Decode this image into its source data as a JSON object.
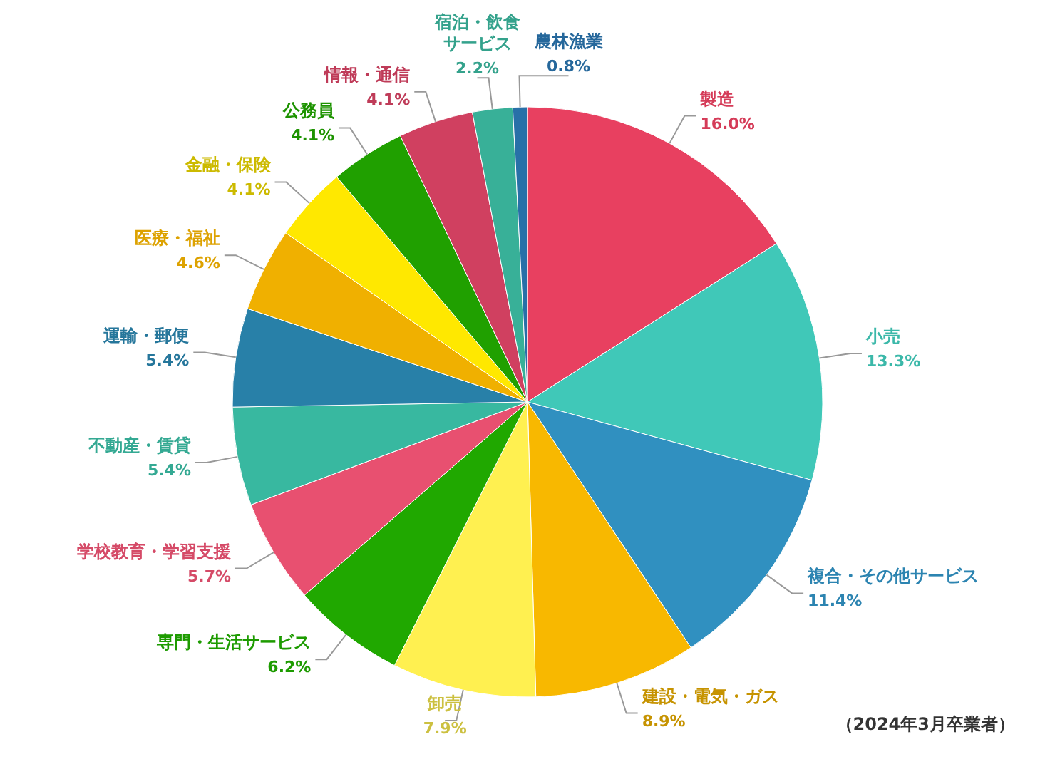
{
  "chart_data": {
    "type": "pie",
    "categories": [
      "製造",
      "小売",
      "複合・その他サービス",
      "建設・電気・ガス",
      "卸売",
      "専門・生活サービス",
      "学校教育・学習支援",
      "不動産・賃貸",
      "運輸・郵便",
      "医療・福祉",
      "金融・保険",
      "公務員",
      "情報・通信",
      "宿泊・飲食サービス",
      "農林漁業"
    ],
    "values": [
      16.0,
      13.3,
      11.4,
      8.9,
      7.9,
      6.2,
      5.7,
      5.4,
      5.4,
      4.6,
      4.1,
      4.1,
      4.1,
      2.2,
      0.8
    ],
    "value_labels": [
      "16.0%",
      "13.3%",
      "11.4%",
      "8.9%",
      "7.9%",
      "6.2%",
      "5.7%",
      "5.4%",
      "5.4%",
      "4.6%",
      "4.1%",
      "4.1%",
      "4.1%",
      "2.2%",
      "0.8%"
    ],
    "colors": [
      "#e84060",
      "#40c8b8",
      "#3090c0",
      "#f8b800",
      "#fff050",
      "#20a800",
      "#e85070",
      "#38b8a0",
      "#2880a8",
      "#f0b000",
      "#ffe800",
      "#20a000",
      "#d04060",
      "#38b098",
      "#2870a8"
    ],
    "annotations": [
      "（2024年3月卒業者）"
    ]
  }
}
